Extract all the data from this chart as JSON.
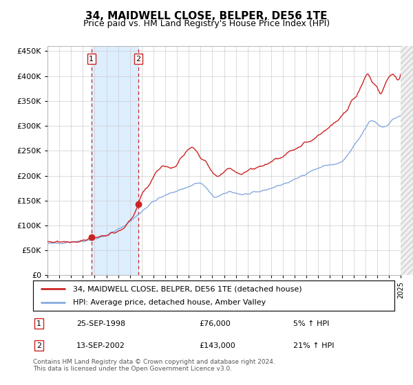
{
  "title": "34, MAIDWELL CLOSE, BELPER, DE56 1TE",
  "subtitle": "Price paid vs. HM Land Registry's House Price Index (HPI)",
  "legend_line1": "34, MAIDWELL CLOSE, BELPER, DE56 1TE (detached house)",
  "legend_line2": "HPI: Average price, detached house, Amber Valley",
  "transaction1_date": "25-SEP-1998",
  "transaction1_price": 76000,
  "transaction1_label": "5% ↑ HPI",
  "transaction2_date": "13-SEP-2002",
  "transaction2_price": 143000,
  "transaction2_label": "21% ↑ HPI",
  "footer": "Contains HM Land Registry data © Crown copyright and database right 2024.\nThis data is licensed under the Open Government Licence v3.0.",
  "red_color": "#cc2222",
  "blue_color": "#88aadd",
  "highlight_color": "#ddeeff",
  "grid_color": "#cccccc",
  "background_color": "#ffffff",
  "hatch_color": "#dddddd",
  "ylim": [
    0,
    460000
  ],
  "yticks": [
    0,
    50000,
    100000,
    150000,
    200000,
    250000,
    300000,
    350000,
    400000,
    450000
  ],
  "year_start": 1995,
  "year_end": 2025,
  "transaction1_year": 1998.73,
  "transaction2_year": 2002.71
}
